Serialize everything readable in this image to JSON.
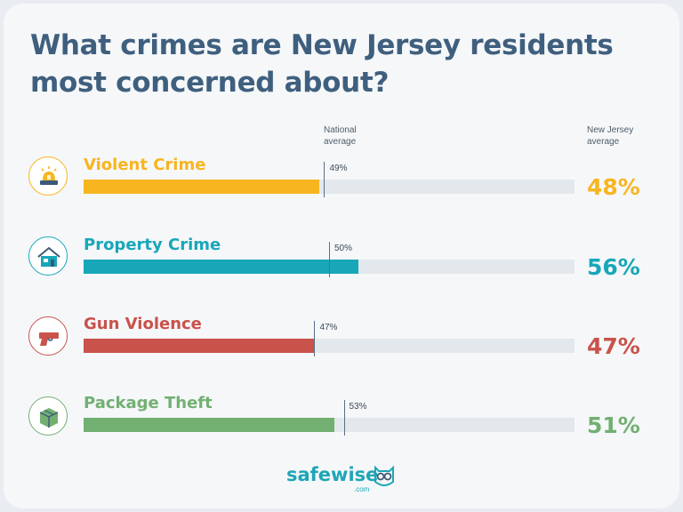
{
  "title": "What crimes are New Jersey residents most concerned about?",
  "columns": {
    "national": [
      "National",
      "average"
    ],
    "nj": [
      "New Jersey",
      "average"
    ]
  },
  "chart_data": {
    "type": "bar",
    "categories": [
      "Violent Crime",
      "Property Crime",
      "Gun Violence",
      "Package Theft"
    ],
    "series": [
      {
        "name": "New Jersey average",
        "values": [
          48,
          56,
          47,
          51
        ]
      },
      {
        "name": "National average",
        "values": [
          49,
          50,
          47,
          53
        ]
      }
    ],
    "ylim": [
      0,
      100
    ],
    "colors": [
      "#f7b520",
      "#17a7b9",
      "#c9524a",
      "#72b072"
    ],
    "track_color": "#e3e8ed"
  },
  "labels": {
    "nat": [
      "49%",
      "50%",
      "47%",
      "53%"
    ],
    "nj": [
      "48%",
      "56%",
      "47%",
      "51%"
    ]
  },
  "icons": [
    "siren-icon",
    "house-icon",
    "gun-icon",
    "package-icon"
  ],
  "logo": {
    "brand": "safewise",
    "sub": ".com"
  }
}
